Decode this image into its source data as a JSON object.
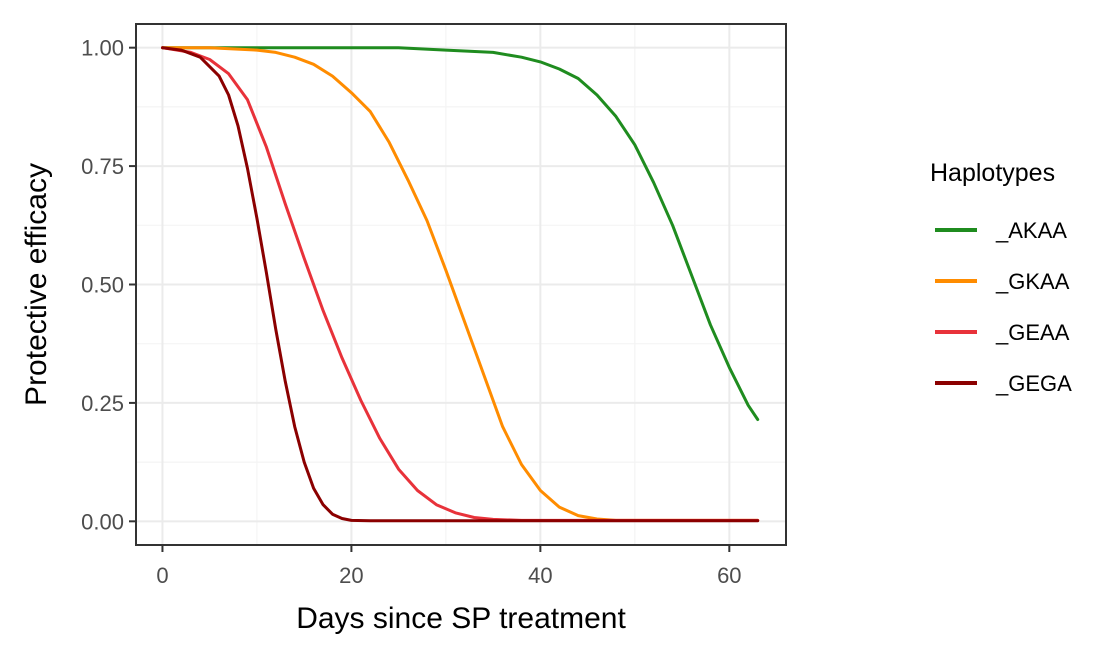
{
  "chart_data": {
    "type": "line",
    "xlabel": "Days since SP treatment",
    "ylabel": "Protective efficacy",
    "xlim": [
      -2.8,
      66
    ],
    "ylim": [
      -0.05,
      1.05
    ],
    "x_ticks": [
      0,
      20,
      40,
      60
    ],
    "x_tick_labels": [
      "0",
      "20",
      "40",
      "60"
    ],
    "y_ticks": [
      0,
      0.25,
      0.5,
      0.75,
      1
    ],
    "y_tick_labels": [
      "0.00",
      "0.25",
      "0.50",
      "0.75",
      "1.00"
    ],
    "grid": true,
    "legend": {
      "title": "Haplotypes",
      "position": "right"
    },
    "series": [
      {
        "name": "_AKAA",
        "color": "#1f8c1f",
        "x": [
          0,
          5,
          10,
          15,
          20,
          25,
          30,
          35,
          38,
          40,
          42,
          44,
          46,
          48,
          50,
          52,
          54,
          56,
          58,
          60,
          62,
          63
        ],
        "values": [
          1.0,
          1.0,
          1.0,
          1.0,
          1.0,
          1.0,
          0.995,
          0.99,
          0.98,
          0.97,
          0.955,
          0.935,
          0.9,
          0.855,
          0.795,
          0.715,
          0.625,
          0.52,
          0.415,
          0.325,
          0.245,
          0.215
        ]
      },
      {
        "name": "_GKAA",
        "color": "#ff8c00",
        "x": [
          0,
          5,
          10,
          12,
          14,
          16,
          18,
          20,
          22,
          24,
          26,
          28,
          30,
          32,
          34,
          36,
          38,
          40,
          42,
          44,
          46,
          48,
          63
        ],
        "values": [
          1.0,
          1.0,
          0.995,
          0.99,
          0.98,
          0.965,
          0.94,
          0.905,
          0.865,
          0.8,
          0.72,
          0.635,
          0.53,
          0.42,
          0.31,
          0.2,
          0.12,
          0.065,
          0.03,
          0.012,
          0.005,
          0.002,
          0.002
        ]
      },
      {
        "name": "_GEAA",
        "color": "#e8323a",
        "x": [
          0,
          3,
          5,
          7,
          9,
          11,
          13,
          15,
          17,
          19,
          21,
          23,
          25,
          27,
          29,
          31,
          33,
          35,
          38,
          63
        ],
        "values": [
          1.0,
          0.99,
          0.975,
          0.945,
          0.89,
          0.79,
          0.67,
          0.555,
          0.445,
          0.345,
          0.255,
          0.175,
          0.11,
          0.065,
          0.035,
          0.018,
          0.008,
          0.004,
          0.002,
          0.002
        ]
      },
      {
        "name": "_GEGA",
        "color": "#8b0000",
        "x": [
          0,
          2,
          4,
          6,
          7,
          8,
          9,
          10,
          11,
          12,
          13,
          14,
          15,
          16,
          17,
          18,
          19,
          20,
          22,
          63
        ],
        "values": [
          1.0,
          0.995,
          0.98,
          0.94,
          0.9,
          0.835,
          0.745,
          0.64,
          0.525,
          0.405,
          0.295,
          0.2,
          0.125,
          0.07,
          0.035,
          0.015,
          0.006,
          0.002,
          0.001,
          0.001
        ]
      }
    ]
  }
}
